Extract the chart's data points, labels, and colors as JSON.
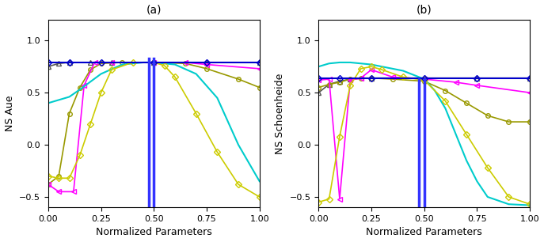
{
  "title_a": "(a)",
  "title_b": "(b)",
  "xlabel": "Normalized Parameters",
  "ylabel_a": "NS Aue",
  "ylabel_b": "NS Schoenheide",
  "xlim": [
    0.0,
    1.0
  ],
  "ylim": [
    -0.6,
    1.2
  ],
  "xticks": [
    0.0,
    0.25,
    0.5,
    0.75,
    1.0
  ],
  "yticks": [
    -0.5,
    0.0,
    0.5,
    1.0
  ],
  "curves_a": [
    {
      "color": "#555555",
      "marker": "^",
      "markersize": 4,
      "linewidth": 1.2,
      "x": [
        0.0,
        0.05,
        0.1,
        0.2,
        0.3,
        0.5,
        0.75,
        1.0
      ],
      "y": [
        0.75,
        0.78,
        0.79,
        0.79,
        0.79,
        0.79,
        0.79,
        0.79
      ]
    },
    {
      "color": "#999900",
      "marker": "o",
      "markersize": 4,
      "linewidth": 1.2,
      "x": [
        0.0,
        0.05,
        0.1,
        0.15,
        0.2,
        0.25,
        0.35,
        0.5,
        0.65,
        0.75,
        0.9,
        1.0
      ],
      "y": [
        -0.38,
        -0.3,
        0.3,
        0.55,
        0.72,
        0.78,
        0.79,
        0.79,
        0.78,
        0.73,
        0.63,
        0.55
      ]
    },
    {
      "color": "#ff00ff",
      "marker": "<",
      "markersize": 4,
      "linewidth": 1.2,
      "x": [
        0.0,
        0.05,
        0.12,
        0.17,
        0.22,
        0.3,
        0.5,
        0.65,
        0.75,
        1.0
      ],
      "y": [
        -0.38,
        -0.45,
        -0.45,
        0.57,
        0.79,
        0.79,
        0.79,
        0.79,
        0.77,
        0.73
      ]
    },
    {
      "color": "#00cccc",
      "marker": null,
      "markersize": 4,
      "linewidth": 1.5,
      "x": [
        0.0,
        0.05,
        0.1,
        0.15,
        0.25,
        0.35,
        0.45,
        0.5,
        0.6,
        0.7,
        0.8,
        0.9,
        1.0
      ],
      "y": [
        0.4,
        0.43,
        0.46,
        0.53,
        0.68,
        0.77,
        0.79,
        0.79,
        0.77,
        0.68,
        0.45,
        0.0,
        -0.35
      ]
    },
    {
      "color": "#cccc00",
      "marker": "D",
      "markersize": 4,
      "linewidth": 1.2,
      "x": [
        0.0,
        0.05,
        0.1,
        0.15,
        0.2,
        0.25,
        0.3,
        0.4,
        0.5,
        0.55,
        0.6,
        0.7,
        0.8,
        0.9,
        1.0
      ],
      "y": [
        -0.3,
        -0.32,
        -0.32,
        -0.1,
        0.2,
        0.5,
        0.72,
        0.79,
        0.79,
        0.76,
        0.65,
        0.3,
        -0.07,
        -0.38,
        -0.5
      ]
    },
    {
      "color": "#0000cc",
      "marker": "D",
      "markersize": 4,
      "linewidth": 1.5,
      "x": [
        0.0,
        0.1,
        0.25,
        0.5,
        0.75,
        1.0
      ],
      "y": [
        0.79,
        0.79,
        0.79,
        0.79,
        0.79,
        0.79
      ]
    },
    {
      "color": "#3333ff",
      "marker": null,
      "markersize": 0,
      "linewidth": 2.5,
      "x": [
        0.475,
        0.475,
        0.5,
        0.5,
        0.525,
        0.525
      ],
      "y": [
        -0.6,
        0.83,
        0.83,
        -0.6,
        -0.6,
        0.83
      ],
      "spike": true
    }
  ],
  "curves_b": [
    {
      "color": "#555555",
      "marker": "^",
      "markersize": 4,
      "linewidth": 1.2,
      "x": [
        0.0,
        0.05,
        0.1,
        0.15,
        0.25,
        0.5,
        0.75,
        1.0
      ],
      "y": [
        0.5,
        0.58,
        0.61,
        0.63,
        0.64,
        0.64,
        0.64,
        0.64
      ]
    },
    {
      "color": "#999900",
      "marker": "o",
      "markersize": 4,
      "linewidth": 1.2,
      "x": [
        0.0,
        0.05,
        0.1,
        0.15,
        0.2,
        0.25,
        0.35,
        0.5,
        0.6,
        0.7,
        0.8,
        0.9,
        1.0
      ],
      "y": [
        0.55,
        0.58,
        0.6,
        0.63,
        0.64,
        0.64,
        0.63,
        0.61,
        0.52,
        0.4,
        0.28,
        0.22,
        0.22
      ]
    },
    {
      "color": "#ff00ff",
      "marker": "<",
      "markersize": 4,
      "linewidth": 1.2,
      "x": [
        0.0,
        0.05,
        0.1,
        0.15,
        0.2,
        0.25,
        0.35,
        0.5,
        0.65,
        0.75,
        1.0
      ],
      "y": [
        0.62,
        0.63,
        -0.52,
        0.62,
        0.64,
        0.72,
        0.65,
        0.63,
        0.6,
        0.57,
        0.5
      ]
    },
    {
      "color": "#00cccc",
      "marker": null,
      "markersize": 4,
      "linewidth": 1.5,
      "x": [
        0.0,
        0.05,
        0.1,
        0.15,
        0.2,
        0.25,
        0.3,
        0.4,
        0.5,
        0.55,
        0.6,
        0.65,
        0.7,
        0.75,
        0.8,
        0.9,
        1.0
      ],
      "y": [
        0.75,
        0.78,
        0.79,
        0.79,
        0.78,
        0.77,
        0.75,
        0.71,
        0.63,
        0.52,
        0.35,
        0.1,
        -0.15,
        -0.35,
        -0.5,
        -0.57,
        -0.58
      ]
    },
    {
      "color": "#cccc00",
      "marker": "D",
      "markersize": 4,
      "linewidth": 1.2,
      "x": [
        0.0,
        0.05,
        0.1,
        0.15,
        0.2,
        0.25,
        0.3,
        0.4,
        0.5,
        0.6,
        0.7,
        0.8,
        0.9,
        1.0
      ],
      "y": [
        -0.55,
        -0.52,
        0.08,
        0.57,
        0.73,
        0.75,
        0.72,
        0.65,
        0.62,
        0.42,
        0.1,
        -0.22,
        -0.5,
        -0.57
      ]
    },
    {
      "color": "#0000cc",
      "marker": "D",
      "markersize": 4,
      "linewidth": 1.5,
      "x": [
        0.0,
        0.1,
        0.25,
        0.5,
        0.75,
        1.0
      ],
      "y": [
        0.64,
        0.64,
        0.64,
        0.64,
        0.64,
        0.64
      ]
    },
    {
      "color": "#3333ff",
      "marker": null,
      "markersize": 0,
      "linewidth": 2.5,
      "x": [
        0.475,
        0.475,
        0.5,
        0.5,
        0.525,
        0.525
      ],
      "y": [
        -0.6,
        0.63,
        0.63,
        -0.6,
        -0.6,
        0.63
      ],
      "spike": true
    }
  ]
}
